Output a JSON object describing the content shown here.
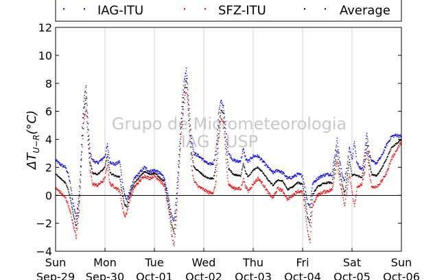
{
  "chart_data": {
    "type": "scatter",
    "title": "",
    "ylabel": "ΔT U−R (°C)",
    "ylabel_main": "ΔT",
    "ylabel_sub": "U−R",
    "ylabel_unit": "(°C)",
    "xlabel": "",
    "ylim": [
      -4,
      12
    ],
    "yticks": [
      -4,
      -2,
      0,
      2,
      4,
      6,
      8,
      10,
      12
    ],
    "xlim": [
      "2013-09-29",
      "2013-10-06"
    ],
    "x_ticks": [
      {
        "day": "Sun",
        "date": "Sep-29"
      },
      {
        "day": "Mon",
        "date": "Sep-30"
      },
      {
        "day": "Tue",
        "date": "Oct-01"
      },
      {
        "day": "Wed",
        "date": "Oct-02"
      },
      {
        "day": "Thu",
        "date": "Oct-03"
      },
      {
        "day": "Fri",
        "date": "Oct-04"
      },
      {
        "day": "Sat",
        "date": "Oct-05"
      },
      {
        "day": "Sun",
        "date": "Oct-06"
      }
    ],
    "grid": "vertical",
    "zero_line": true,
    "legend_position": "top",
    "watermark": [
      "Grupo de Micrometeorologia",
      "IAG / USP"
    ],
    "colors": {
      "IAG-ITU": "#0000ff",
      "SFZ-ITU": "#ff0000",
      "Average": "#000000"
    },
    "series": [
      {
        "name": "IAG-ITU",
        "color": "#0000ff",
        "points": [
          [
            0.0,
            2.5
          ],
          [
            0.1,
            2.2
          ],
          [
            0.2,
            2.0
          ],
          [
            0.25,
            1.6
          ],
          [
            0.3,
            0.8
          ],
          [
            0.35,
            -0.5
          ],
          [
            0.42,
            -1.6
          ],
          [
            0.48,
            0.2
          ],
          [
            0.52,
            3.0
          ],
          [
            0.55,
            5.5
          ],
          [
            0.58,
            7.0
          ],
          [
            0.62,
            7.8
          ],
          [
            0.66,
            5.0
          ],
          [
            0.7,
            3.0
          ],
          [
            0.75,
            2.5
          ],
          [
            0.85,
            2.3
          ],
          [
            0.95,
            2.6
          ],
          [
            1.0,
            2.8
          ],
          [
            1.05,
            3.6
          ],
          [
            1.1,
            2.4
          ],
          [
            1.2,
            2.2
          ],
          [
            1.3,
            2.4
          ],
          [
            1.35,
            1.0
          ],
          [
            1.4,
            0.0
          ],
          [
            1.45,
            -0.4
          ],
          [
            1.5,
            0.3
          ],
          [
            1.6,
            1.2
          ],
          [
            1.7,
            1.6
          ],
          [
            1.8,
            2.0
          ],
          [
            1.9,
            1.7
          ],
          [
            2.0,
            1.8
          ],
          [
            2.1,
            1.6
          ],
          [
            2.2,
            1.3
          ],
          [
            2.3,
            -0.5
          ],
          [
            2.35,
            -1.5
          ],
          [
            2.4,
            -1.8
          ],
          [
            2.45,
            0.0
          ],
          [
            2.5,
            3.0
          ],
          [
            2.55,
            6.0
          ],
          [
            2.6,
            8.2
          ],
          [
            2.65,
            9.0
          ],
          [
            2.7,
            6.5
          ],
          [
            2.75,
            4.0
          ],
          [
            2.8,
            3.0
          ],
          [
            2.9,
            2.8
          ],
          [
            3.0,
            2.5
          ],
          [
            3.1,
            2.2
          ],
          [
            3.2,
            2.3
          ],
          [
            3.25,
            3.2
          ],
          [
            3.3,
            5.8
          ],
          [
            3.35,
            6.8
          ],
          [
            3.4,
            6.3
          ],
          [
            3.45,
            4.5
          ],
          [
            3.5,
            3.0
          ],
          [
            3.6,
            2.5
          ],
          [
            3.7,
            2.4
          ],
          [
            3.75,
            2.5
          ],
          [
            3.8,
            3.3
          ],
          [
            3.85,
            2.6
          ],
          [
            3.9,
            2.4
          ],
          [
            4.0,
            2.8
          ],
          [
            4.1,
            2.8
          ],
          [
            4.2,
            2.4
          ],
          [
            4.3,
            2.0
          ],
          [
            4.4,
            1.6
          ],
          [
            4.5,
            1.8
          ],
          [
            4.6,
            1.6
          ],
          [
            4.7,
            1.2
          ],
          [
            4.8,
            1.3
          ],
          [
            4.9,
            1.5
          ],
          [
            5.0,
            1.4
          ],
          [
            5.05,
            0.5
          ],
          [
            5.1,
            -0.5
          ],
          [
            5.15,
            -0.8
          ],
          [
            5.2,
            0.8
          ],
          [
            5.3,
            1.2
          ],
          [
            5.4,
            1.4
          ],
          [
            5.5,
            1.5
          ],
          [
            5.6,
            1.5
          ],
          [
            5.65,
            2.8
          ],
          [
            5.7,
            4.0
          ],
          [
            5.75,
            2.5
          ],
          [
            5.8,
            1.5
          ],
          [
            5.85,
            1.0
          ],
          [
            5.9,
            2.0
          ],
          [
            5.95,
            3.5
          ],
          [
            6.0,
            2.5
          ],
          [
            6.05,
            3.8
          ],
          [
            6.1,
            2.3
          ],
          [
            6.2,
            1.8
          ],
          [
            6.25,
            2.8
          ],
          [
            6.3,
            4.5
          ],
          [
            6.35,
            3.0
          ],
          [
            6.4,
            2.4
          ],
          [
            6.5,
            2.3
          ],
          [
            6.6,
            2.8
          ],
          [
            6.7,
            3.6
          ],
          [
            6.8,
            4.2
          ],
          [
            6.9,
            4.3
          ],
          [
            7.0,
            4.2
          ]
        ]
      },
      {
        "name": "SFZ-ITU",
        "color": "#ff0000",
        "points": [
          [
            0.0,
            0.5
          ],
          [
            0.1,
            0.2
          ],
          [
            0.2,
            -0.2
          ],
          [
            0.25,
            -0.6
          ],
          [
            0.3,
            -1.2
          ],
          [
            0.35,
            -2.0
          ],
          [
            0.42,
            -3.0
          ],
          [
            0.48,
            -1.0
          ],
          [
            0.52,
            2.0
          ],
          [
            0.55,
            4.0
          ],
          [
            0.58,
            5.5
          ],
          [
            0.62,
            6.2
          ],
          [
            0.66,
            3.5
          ],
          [
            0.7,
            1.8
          ],
          [
            0.75,
            0.8
          ],
          [
            0.85,
            0.7
          ],
          [
            0.95,
            1.0
          ],
          [
            1.0,
            1.2
          ],
          [
            1.05,
            2.2
          ],
          [
            1.1,
            0.8
          ],
          [
            1.2,
            0.6
          ],
          [
            1.3,
            0.3
          ],
          [
            1.35,
            -0.8
          ],
          [
            1.4,
            -1.5
          ],
          [
            1.45,
            -1.2
          ],
          [
            1.5,
            -0.3
          ],
          [
            1.6,
            0.6
          ],
          [
            1.7,
            1.0
          ],
          [
            1.8,
            1.4
          ],
          [
            1.9,
            1.2
          ],
          [
            2.0,
            1.4
          ],
          [
            2.1,
            1.1
          ],
          [
            2.2,
            0.7
          ],
          [
            2.3,
            -1.3
          ],
          [
            2.35,
            -2.8
          ],
          [
            2.4,
            -3.6
          ],
          [
            2.45,
            -1.5
          ],
          [
            2.5,
            2.0
          ],
          [
            2.55,
            4.5
          ],
          [
            2.6,
            6.5
          ],
          [
            2.65,
            7.8
          ],
          [
            2.7,
            5.0
          ],
          [
            2.75,
            2.2
          ],
          [
            2.8,
            1.0
          ],
          [
            2.9,
            0.6
          ],
          [
            3.0,
            0.4
          ],
          [
            3.1,
            0.2
          ],
          [
            3.2,
            0.2
          ],
          [
            3.25,
            1.0
          ],
          [
            3.3,
            3.8
          ],
          [
            3.35,
            5.5
          ],
          [
            3.4,
            5.2
          ],
          [
            3.45,
            2.5
          ],
          [
            3.5,
            0.8
          ],
          [
            3.6,
            0.5
          ],
          [
            3.7,
            0.5
          ],
          [
            3.75,
            0.4
          ],
          [
            3.8,
            1.2
          ],
          [
            3.85,
            0.6
          ],
          [
            3.9,
            0.3
          ],
          [
            4.0,
            0.8
          ],
          [
            4.1,
            1.2
          ],
          [
            4.2,
            0.8
          ],
          [
            4.3,
            0.2
          ],
          [
            4.4,
            -0.2
          ],
          [
            4.5,
            0.5
          ],
          [
            4.6,
            0.3
          ],
          [
            4.7,
            -0.3
          ],
          [
            4.8,
            0.0
          ],
          [
            4.9,
            0.3
          ],
          [
            5.0,
            0.2
          ],
          [
            5.05,
            -1.0
          ],
          [
            5.1,
            -2.5
          ],
          [
            5.15,
            -3.4
          ],
          [
            5.2,
            -0.8
          ],
          [
            5.3,
            0.0
          ],
          [
            5.4,
            0.2
          ],
          [
            5.5,
            0.3
          ],
          [
            5.6,
            0.4
          ],
          [
            5.65,
            1.5
          ],
          [
            5.7,
            2.5
          ],
          [
            5.75,
            1.0
          ],
          [
            5.8,
            0.2
          ],
          [
            5.85,
            -0.8
          ],
          [
            5.9,
            0.4
          ],
          [
            5.95,
            1.5
          ],
          [
            6.0,
            0.3
          ],
          [
            6.05,
            -0.8
          ],
          [
            6.1,
            0.5
          ],
          [
            6.2,
            0.8
          ],
          [
            6.25,
            1.5
          ],
          [
            6.3,
            3.2
          ],
          [
            6.35,
            1.6
          ],
          [
            6.4,
            0.6
          ],
          [
            6.5,
            0.6
          ],
          [
            6.6,
            1.0
          ],
          [
            6.7,
            1.6
          ],
          [
            6.8,
            2.6
          ],
          [
            6.9,
            3.2
          ],
          [
            7.0,
            3.8
          ]
        ]
      },
      {
        "name": "Average",
        "color": "#000000",
        "points": [
          [
            0.0,
            1.5
          ],
          [
            0.1,
            1.2
          ],
          [
            0.2,
            0.9
          ],
          [
            0.25,
            0.5
          ],
          [
            0.3,
            -0.2
          ],
          [
            0.35,
            -1.2
          ],
          [
            0.42,
            -2.3
          ],
          [
            0.48,
            -0.4
          ],
          [
            0.52,
            2.5
          ],
          [
            0.55,
            4.8
          ],
          [
            0.58,
            6.2
          ],
          [
            0.62,
            7.0
          ],
          [
            0.66,
            4.2
          ],
          [
            0.7,
            2.4
          ],
          [
            0.75,
            1.6
          ],
          [
            0.85,
            1.5
          ],
          [
            0.95,
            1.8
          ],
          [
            1.0,
            2.0
          ],
          [
            1.05,
            2.9
          ],
          [
            1.1,
            1.6
          ],
          [
            1.2,
            1.4
          ],
          [
            1.3,
            1.3
          ],
          [
            1.35,
            0.1
          ],
          [
            1.4,
            -0.7
          ],
          [
            1.45,
            -0.8
          ],
          [
            1.5,
            0.0
          ],
          [
            1.6,
            0.9
          ],
          [
            1.7,
            1.3
          ],
          [
            1.8,
            1.7
          ],
          [
            1.9,
            1.5
          ],
          [
            2.0,
            1.6
          ],
          [
            2.1,
            1.3
          ],
          [
            2.2,
            1.0
          ],
          [
            2.3,
            -0.9
          ],
          [
            2.35,
            -2.1
          ],
          [
            2.4,
            -2.7
          ],
          [
            2.45,
            -0.7
          ],
          [
            2.5,
            2.5
          ],
          [
            2.55,
            5.2
          ],
          [
            2.6,
            7.3
          ],
          [
            2.65,
            8.4
          ],
          [
            2.7,
            5.7
          ],
          [
            2.75,
            3.1
          ],
          [
            2.8,
            2.0
          ],
          [
            2.9,
            1.7
          ],
          [
            3.0,
            1.4
          ],
          [
            3.1,
            1.2
          ],
          [
            3.2,
            1.2
          ],
          [
            3.25,
            2.1
          ],
          [
            3.3,
            4.8
          ],
          [
            3.35,
            6.1
          ],
          [
            3.4,
            5.8
          ],
          [
            3.45,
            3.5
          ],
          [
            3.5,
            1.9
          ],
          [
            3.6,
            1.5
          ],
          [
            3.7,
            1.4
          ],
          [
            3.75,
            1.4
          ],
          [
            3.8,
            2.3
          ],
          [
            3.85,
            1.6
          ],
          [
            3.9,
            1.3
          ],
          [
            4.0,
            1.8
          ],
          [
            4.1,
            2.0
          ],
          [
            4.2,
            1.6
          ],
          [
            4.3,
            1.1
          ],
          [
            4.4,
            0.7
          ],
          [
            4.5,
            1.1
          ],
          [
            4.6,
            1.0
          ],
          [
            4.7,
            0.4
          ],
          [
            4.8,
            0.6
          ],
          [
            4.9,
            0.9
          ],
          [
            5.0,
            0.8
          ],
          [
            5.05,
            -0.3
          ],
          [
            5.1,
            -1.5
          ],
          [
            5.15,
            -2.1
          ],
          [
            5.2,
            0.0
          ],
          [
            5.3,
            0.6
          ],
          [
            5.4,
            0.8
          ],
          [
            5.5,
            0.9
          ],
          [
            5.6,
            0.9
          ],
          [
            5.65,
            2.1
          ],
          [
            5.7,
            3.2
          ],
          [
            5.75,
            1.7
          ],
          [
            5.8,
            0.8
          ],
          [
            5.85,
            0.1
          ],
          [
            5.9,
            1.2
          ],
          [
            5.95,
            2.5
          ],
          [
            6.0,
            1.4
          ],
          [
            6.05,
            1.5
          ],
          [
            6.1,
            1.4
          ],
          [
            6.2,
            1.3
          ],
          [
            6.25,
            2.1
          ],
          [
            6.3,
            3.8
          ],
          [
            6.35,
            2.3
          ],
          [
            6.4,
            1.5
          ],
          [
            6.5,
            1.4
          ],
          [
            6.6,
            1.9
          ],
          [
            6.7,
            2.6
          ],
          [
            6.8,
            3.4
          ],
          [
            6.9,
            3.7
          ],
          [
            7.0,
            4.0
          ]
        ]
      }
    ]
  }
}
